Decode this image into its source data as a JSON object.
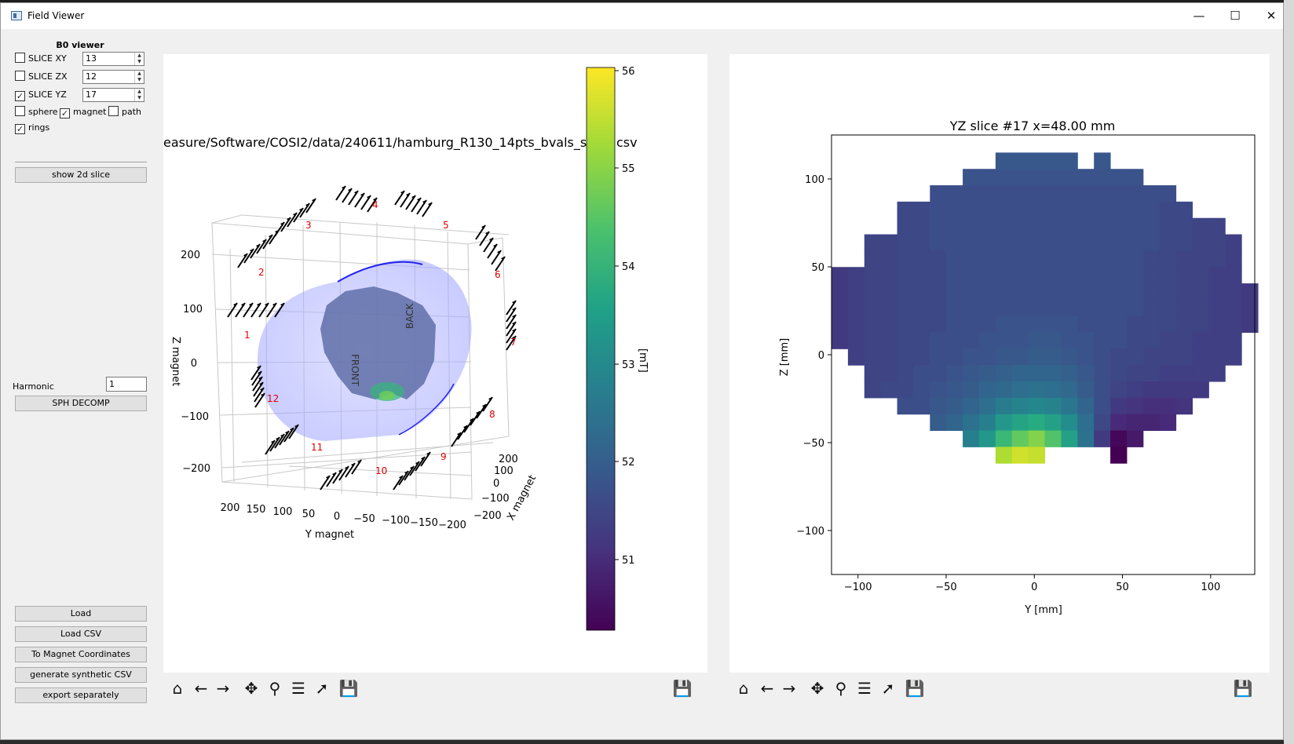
{
  "window": {
    "title": "Field Viewer",
    "minimize_icon": "minimize-icon",
    "maximize_icon": "maximize-icon",
    "close_icon": "close-icon"
  },
  "sidebar": {
    "header": "B0 viewer",
    "slices": [
      {
        "label": "SLICE XY",
        "checked": false,
        "value": "13"
      },
      {
        "label": "SLICE ZX",
        "checked": false,
        "value": "12"
      },
      {
        "label": "SLICE YZ",
        "checked": true,
        "value": "17"
      }
    ],
    "toggles": [
      {
        "label": "sphere",
        "checked": false
      },
      {
        "label": "magnet",
        "checked": true
      },
      {
        "label": "path",
        "checked": false
      },
      {
        "label": "rings",
        "checked": true
      }
    ],
    "show_2d_slice": "show 2d slice",
    "harmonic_label": "Harmonic",
    "harmonic_value": "1",
    "sph_decomp": "SPH DECOMP",
    "buttons": [
      "Load",
      "Load CSV",
      "To Magnet Coordinates",
      "generate synthetic CSV",
      "export separately"
    ]
  },
  "left_plot": {
    "title": "easure/Software/COSI2/data/240611/hamburg_R130_14pts_bvals_shif",
    "title_tail": "csv",
    "z_label": "Z magnet",
    "y_label": "Y magnet",
    "x_label": "X magnet",
    "z_ticks": [
      "200",
      "100",
      "0",
      "−100",
      "−200"
    ],
    "y_ticks": [
      "200",
      "150",
      "100",
      "50",
      "0",
      "−50",
      "−100",
      "−150",
      "−200"
    ],
    "x_ticks": [
      "200",
      "100",
      "0",
      "−100",
      "−200"
    ],
    "front_label": "FRONT",
    "back_label": "BACK",
    "ring_numbers": [
      "1",
      "2",
      "3",
      "4",
      "5",
      "6",
      "7",
      "8",
      "9",
      "10",
      "11",
      "12"
    ],
    "colorbar": {
      "label": "[mT]",
      "ticks": [
        "56",
        "55",
        "54",
        "53",
        "52",
        "51"
      ]
    }
  },
  "right_plot": {
    "title": "YZ slice #17 x=48.00 mm",
    "xlabel": "Y [mm]",
    "ylabel": "Z [mm]",
    "xticks": [
      "−100",
      "−50",
      "0",
      "50",
      "100"
    ],
    "yticks": [
      "100",
      "50",
      "0",
      "−50",
      "−100"
    ]
  },
  "toolbar_icons": [
    "home-icon",
    "back-arrow-icon",
    "forward-arrow-icon",
    "pan-icon",
    "zoom-icon",
    "subplots-icon",
    "edit-axis-icon",
    "save-icon"
  ],
  "chart_data": {
    "type": "heatmap",
    "title": "YZ slice #17 x=48.00 mm",
    "xlabel": "Y [mm]",
    "ylabel": "Z [mm]",
    "xlim": [
      -115,
      125
    ],
    "ylim": [
      -125,
      125
    ],
    "colorbar": {
      "label": "[mT]",
      "range": [
        50.3,
        56.1
      ],
      "colormap": "viridis"
    },
    "grid_x0": -115,
    "grid_y0": 115,
    "cell_mm": 9.3,
    "rows": [
      [
        null,
        null,
        null,
        null,
        null,
        null,
        null,
        null,
        null,
        null,
        51.9,
        51.9,
        51.9,
        51.9,
        51.9,
        null,
        51.9,
        null,
        null,
        null,
        null,
        null,
        null,
        null,
        null,
        null
      ],
      [
        null,
        null,
        null,
        null,
        null,
        null,
        null,
        null,
        51.8,
        51.8,
        51.8,
        51.8,
        51.8,
        51.8,
        51.8,
        51.8,
        51.8,
        51.8,
        51.8,
        null,
        null,
        null,
        null,
        null,
        null,
        null
      ],
      [
        null,
        null,
        null,
        null,
        null,
        null,
        51.7,
        51.7,
        51.7,
        51.7,
        51.7,
        51.7,
        51.7,
        51.7,
        51.7,
        51.7,
        51.7,
        51.7,
        51.7,
        51.7,
        51.7,
        null,
        null,
        null,
        null,
        null
      ],
      [
        null,
        null,
        null,
        null,
        51.6,
        51.6,
        51.7,
        51.7,
        51.7,
        51.7,
        51.7,
        51.7,
        51.7,
        51.7,
        51.7,
        51.7,
        51.7,
        51.7,
        51.7,
        51.7,
        51.6,
        51.6,
        null,
        null,
        null,
        null
      ],
      [
        null,
        null,
        null,
        null,
        51.6,
        51.6,
        51.7,
        51.7,
        51.7,
        51.7,
        51.7,
        51.7,
        51.7,
        51.7,
        51.7,
        51.7,
        51.7,
        51.7,
        51.7,
        51.7,
        51.6,
        51.6,
        51.5,
        51.5,
        null,
        null
      ],
      [
        null,
        null,
        51.5,
        51.5,
        51.6,
        51.6,
        51.7,
        51.7,
        51.7,
        51.7,
        51.7,
        51.7,
        51.7,
        51.7,
        51.7,
        51.7,
        51.7,
        51.7,
        51.7,
        51.7,
        51.6,
        51.6,
        51.5,
        51.5,
        51.4,
        null
      ],
      [
        null,
        null,
        51.5,
        51.5,
        51.6,
        51.6,
        51.6,
        51.7,
        51.7,
        51.7,
        51.7,
        51.7,
        51.7,
        51.7,
        51.7,
        51.7,
        51.7,
        51.7,
        51.7,
        51.6,
        51.6,
        51.5,
        51.5,
        51.5,
        51.4,
        null
      ],
      [
        51.3,
        51.4,
        51.5,
        51.5,
        51.6,
        51.6,
        51.6,
        51.7,
        51.7,
        51.7,
        51.7,
        51.7,
        51.7,
        51.7,
        51.7,
        51.7,
        51.7,
        51.7,
        51.7,
        51.6,
        51.6,
        51.5,
        51.5,
        51.4,
        51.4,
        null
      ],
      [
        51.3,
        51.4,
        51.5,
        51.5,
        51.6,
        51.6,
        51.6,
        51.7,
        51.7,
        51.7,
        51.7,
        51.7,
        51.7,
        51.7,
        51.7,
        51.7,
        51.7,
        51.7,
        51.7,
        51.6,
        51.6,
        51.5,
        51.5,
        51.4,
        51.4,
        51.3
      ],
      [
        51.3,
        51.4,
        51.5,
        51.5,
        51.6,
        51.6,
        51.6,
        51.7,
        51.7,
        51.7,
        51.7,
        51.7,
        51.7,
        51.7,
        51.7,
        51.7,
        51.7,
        51.7,
        51.7,
        51.6,
        51.6,
        51.5,
        51.5,
        51.4,
        51.4,
        51.3
      ],
      [
        51.3,
        51.4,
        51.5,
        51.5,
        51.6,
        51.6,
        51.6,
        51.7,
        51.7,
        51.7,
        51.8,
        51.8,
        51.8,
        51.8,
        51.8,
        51.7,
        51.7,
        51.7,
        51.6,
        51.6,
        51.6,
        51.5,
        51.5,
        51.4,
        51.4,
        51.3
      ],
      [
        51.3,
        51.4,
        51.5,
        51.5,
        51.6,
        51.6,
        51.7,
        51.7,
        51.7,
        51.8,
        51.8,
        51.8,
        51.9,
        51.9,
        51.8,
        51.8,
        51.7,
        51.7,
        51.6,
        51.6,
        51.5,
        51.5,
        51.4,
        51.4,
        51.4,
        null
      ],
      [
        null,
        51.4,
        51.5,
        51.5,
        51.6,
        51.6,
        51.7,
        51.7,
        51.8,
        51.8,
        51.9,
        51.9,
        52.0,
        52.0,
        51.9,
        51.8,
        51.7,
        51.6,
        51.6,
        51.5,
        51.5,
        51.5,
        51.4,
        51.4,
        51.4,
        null
      ],
      [
        null,
        null,
        51.5,
        51.5,
        51.6,
        51.7,
        51.7,
        51.8,
        51.9,
        52.0,
        52.1,
        52.2,
        52.2,
        52.2,
        52.1,
        51.9,
        51.7,
        51.6,
        51.5,
        51.5,
        51.4,
        51.4,
        51.4,
        51.4,
        null,
        null
      ],
      [
        null,
        null,
        51.5,
        51.6,
        51.6,
        51.7,
        51.8,
        51.9,
        52.0,
        52.2,
        52.3,
        52.4,
        52.5,
        52.4,
        52.3,
        52.0,
        51.7,
        51.5,
        51.4,
        51.3,
        51.3,
        51.3,
        51.3,
        null,
        null,
        null
      ],
      [
        null,
        null,
        null,
        null,
        51.7,
        51.7,
        51.9,
        52.0,
        52.2,
        52.4,
        52.7,
        52.9,
        53.0,
        52.9,
        52.6,
        52.2,
        51.7,
        51.3,
        51.2,
        51.1,
        51.1,
        51.2,
        null,
        null,
        null,
        null
      ],
      [
        null,
        null,
        null,
        null,
        null,
        null,
        52.0,
        52.2,
        52.5,
        52.8,
        53.4,
        53.7,
        53.9,
        53.6,
        53.1,
        52.4,
        51.6,
        51.0,
        50.9,
        50.9,
        51.0,
        null,
        null,
        null,
        null,
        null
      ],
      [
        null,
        null,
        null,
        null,
        null,
        null,
        null,
        null,
        52.8,
        53.4,
        54.2,
        54.7,
        55.0,
        54.5,
        53.6,
        52.5,
        51.3,
        50.4,
        50.7,
        null,
        null,
        null,
        null,
        null,
        null,
        null
      ],
      [
        null,
        null,
        null,
        null,
        null,
        null,
        null,
        null,
        null,
        null,
        55.4,
        55.7,
        55.6,
        null,
        null,
        null,
        null,
        50.3,
        null,
        null,
        null,
        null,
        null,
        null,
        null,
        null
      ]
    ]
  }
}
